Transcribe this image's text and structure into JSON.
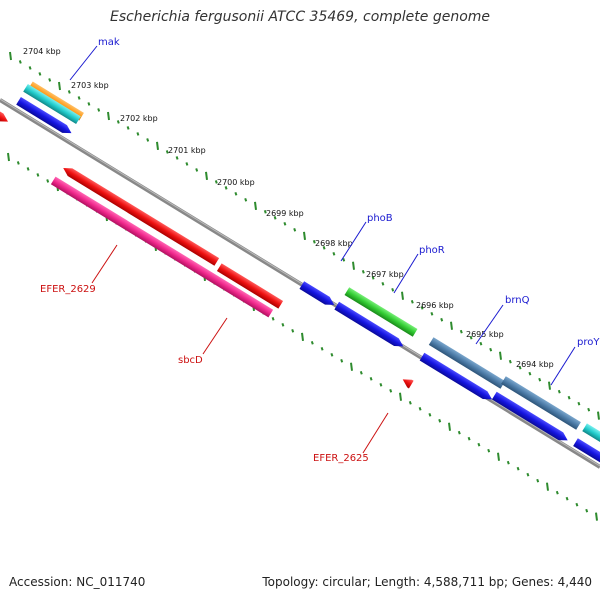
{
  "title": "Escherichia fergusonii ATCC 35469, complete genome",
  "footer": {
    "accession": "Accession: NC_011740",
    "stats": "Topology: circular; Length: 4,588,711 bp; Genes: 4,440"
  },
  "kbp_labels": [
    "2704 kbp",
    "2703 kbp",
    "2702 kbp",
    "2701 kbp",
    "2700 kbp",
    "2699 kbp",
    "2698 kbp",
    "2697 kbp",
    "2696 kbp",
    "2695 kbp",
    "2694 kbp"
  ],
  "gene_labels": {
    "mak": "mak",
    "phoB": "phoB",
    "phoR": "phoR",
    "brnQ": "brnQ",
    "proY": "proY",
    "efer2629": "EFER_2629",
    "sbcD": "sbcD",
    "efer2625": "EFER_2625"
  },
  "colors": {
    "backbone": "#777777",
    "tick": "#2e8b2e",
    "red": "#ee1111",
    "blue": "#1515e0",
    "pink": "#f0288c",
    "green": "#33cc33",
    "steel": "#4d7ca8",
    "cyan": "#22cccc",
    "orange": "#ff9a1a"
  }
}
